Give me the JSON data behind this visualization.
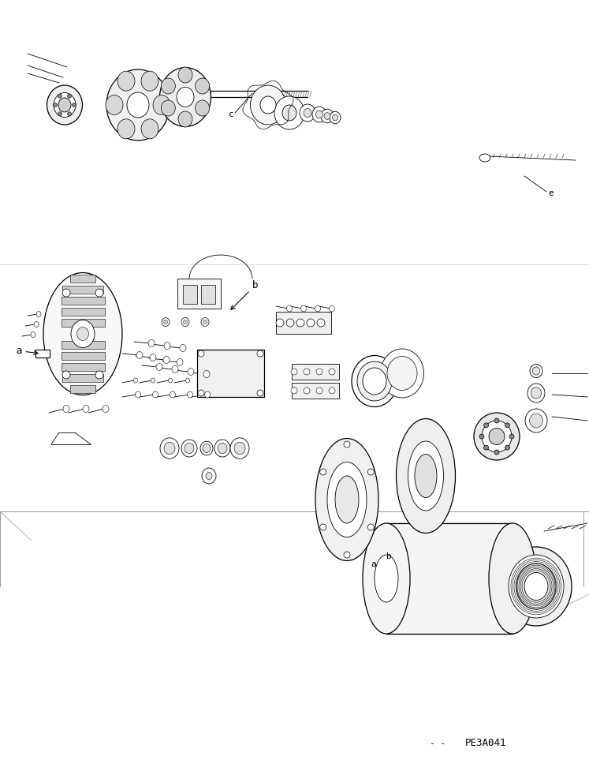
{
  "bg_color": "#ffffff",
  "line_color": "#000000",
  "fig_width": 7.47,
  "fig_height": 9.63,
  "dpi": 100,
  "part_code": "PE3A041",
  "labels": {
    "a_upper": [
      "a",
      0.06,
      0.535
    ],
    "b_upper": [
      "b",
      0.425,
      0.615
    ],
    "a_lower": [
      "a",
      0.595,
      0.265
    ],
    "b_lower": [
      "b",
      0.625,
      0.255
    ],
    "c_label": [
      "c",
      0.335,
      0.845
    ],
    "e_label": [
      "e",
      0.73,
      0.72
    ]
  }
}
